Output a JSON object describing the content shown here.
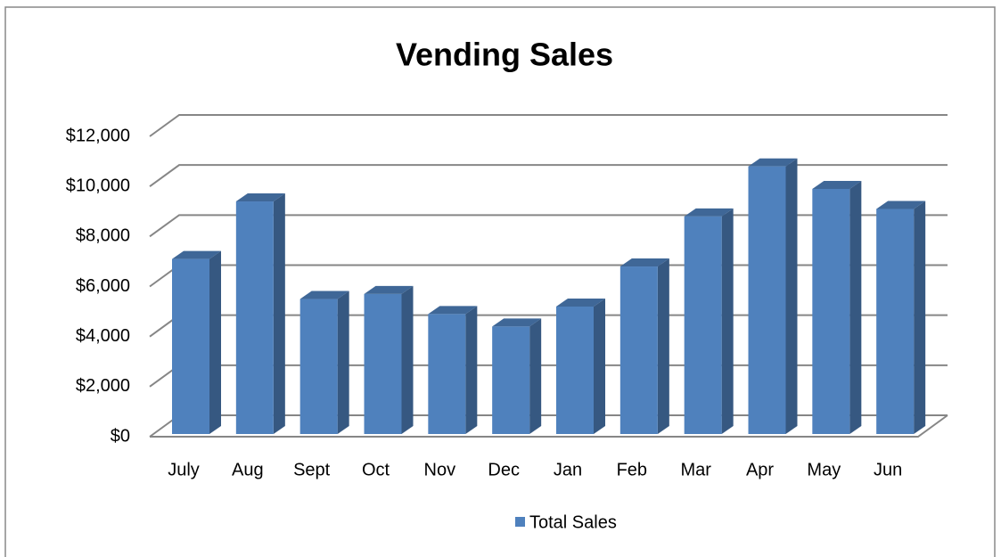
{
  "chart_data": {
    "type": "bar3d",
    "title": "Vending Sales",
    "categories": [
      "July",
      "Aug",
      "Sept",
      "Oct",
      "Nov",
      "Dec",
      "Jan",
      "Feb",
      "Mar",
      "Apr",
      "May",
      "Jun"
    ],
    "series": [
      {
        "name": "Total Sales",
        "color": "#4f81bd",
        "values": [
          7100,
          9400,
          5500,
          5700,
          4900,
          4400,
          5200,
          6800,
          8800,
          10800,
          9900,
          9100
        ]
      }
    ],
    "ylim": [
      0,
      12000
    ],
    "yticks": [
      {
        "value": 0,
        "label": "$0"
      },
      {
        "value": 2000,
        "label": "$2,000"
      },
      {
        "value": 4000,
        "label": "$4,000"
      },
      {
        "value": 6000,
        "label": "$6,000"
      },
      {
        "value": 8000,
        "label": "$8,000"
      },
      {
        "value": 10000,
        "label": "$10,000"
      },
      {
        "value": 12000,
        "label": "$12,000"
      }
    ],
    "grid": true,
    "legend": "bottom"
  }
}
